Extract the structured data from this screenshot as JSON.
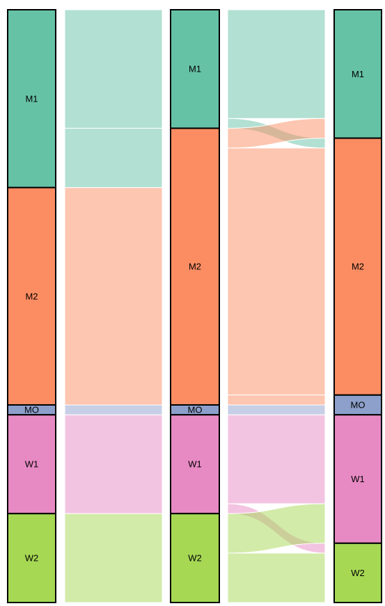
{
  "chart_data": {
    "type": "alluvial",
    "axes": [
      {
        "strata": [
          {
            "label": "M1",
            "value": 90,
            "color": "#66c2a5"
          },
          {
            "label": "M2",
            "value": 110,
            "color": "#fc8d62"
          },
          {
            "label": "MO",
            "value": 5,
            "color": "#8da0cb"
          },
          {
            "label": "W1",
            "value": 50,
            "color": "#e78ac3"
          },
          {
            "label": "W2",
            "value": 45,
            "color": "#a6d854"
          }
        ]
      },
      {
        "strata": [
          {
            "label": "M1",
            "value": 60,
            "color": "#66c2a5"
          },
          {
            "label": "M2",
            "value": 140,
            "color": "#fc8d62"
          },
          {
            "label": "MO",
            "value": 5,
            "color": "#8da0cb"
          },
          {
            "label": "W1",
            "value": 50,
            "color": "#e78ac3"
          },
          {
            "label": "W2",
            "value": 45,
            "color": "#a6d854"
          }
        ]
      },
      {
        "strata": [
          {
            "label": "M1",
            "value": 65,
            "color": "#66c2a5"
          },
          {
            "label": "M2",
            "value": 130,
            "color": "#fc8d62"
          },
          {
            "label": "MO",
            "value": 10,
            "color": "#8da0cb"
          },
          {
            "label": "W1",
            "value": 65,
            "color": "#e78ac3"
          },
          {
            "label": "W2",
            "value": 30,
            "color": "#a6d854"
          }
        ]
      }
    ],
    "flows": [
      [
        {
          "from": "M1",
          "to": "M1",
          "value": 60
        },
        {
          "from": "M1",
          "to": "M2",
          "value": 30
        },
        {
          "from": "M2",
          "to": "M2",
          "value": 110
        },
        {
          "from": "MO",
          "to": "MO",
          "value": 5
        },
        {
          "from": "W1",
          "to": "W1",
          "value": 50
        },
        {
          "from": "W2",
          "to": "W2",
          "value": 45
        }
      ],
      [
        {
          "from": "M1",
          "to": "M1",
          "value": 55
        },
        {
          "from": "M1",
          "to": "M2",
          "value": 5
        },
        {
          "from": "M2",
          "to": "M1",
          "value": 10
        },
        {
          "from": "M2",
          "to": "M2",
          "value": 125
        },
        {
          "from": "M2",
          "to": "MO",
          "value": 5
        },
        {
          "from": "MO",
          "to": "MO",
          "value": 5
        },
        {
          "from": "W1",
          "to": "W1",
          "value": 45
        },
        {
          "from": "W1",
          "to": "W2",
          "value": 5
        },
        {
          "from": "W2",
          "to": "W1",
          "value": 20
        },
        {
          "from": "W2",
          "to": "W2",
          "value": 25
        }
      ]
    ]
  }
}
